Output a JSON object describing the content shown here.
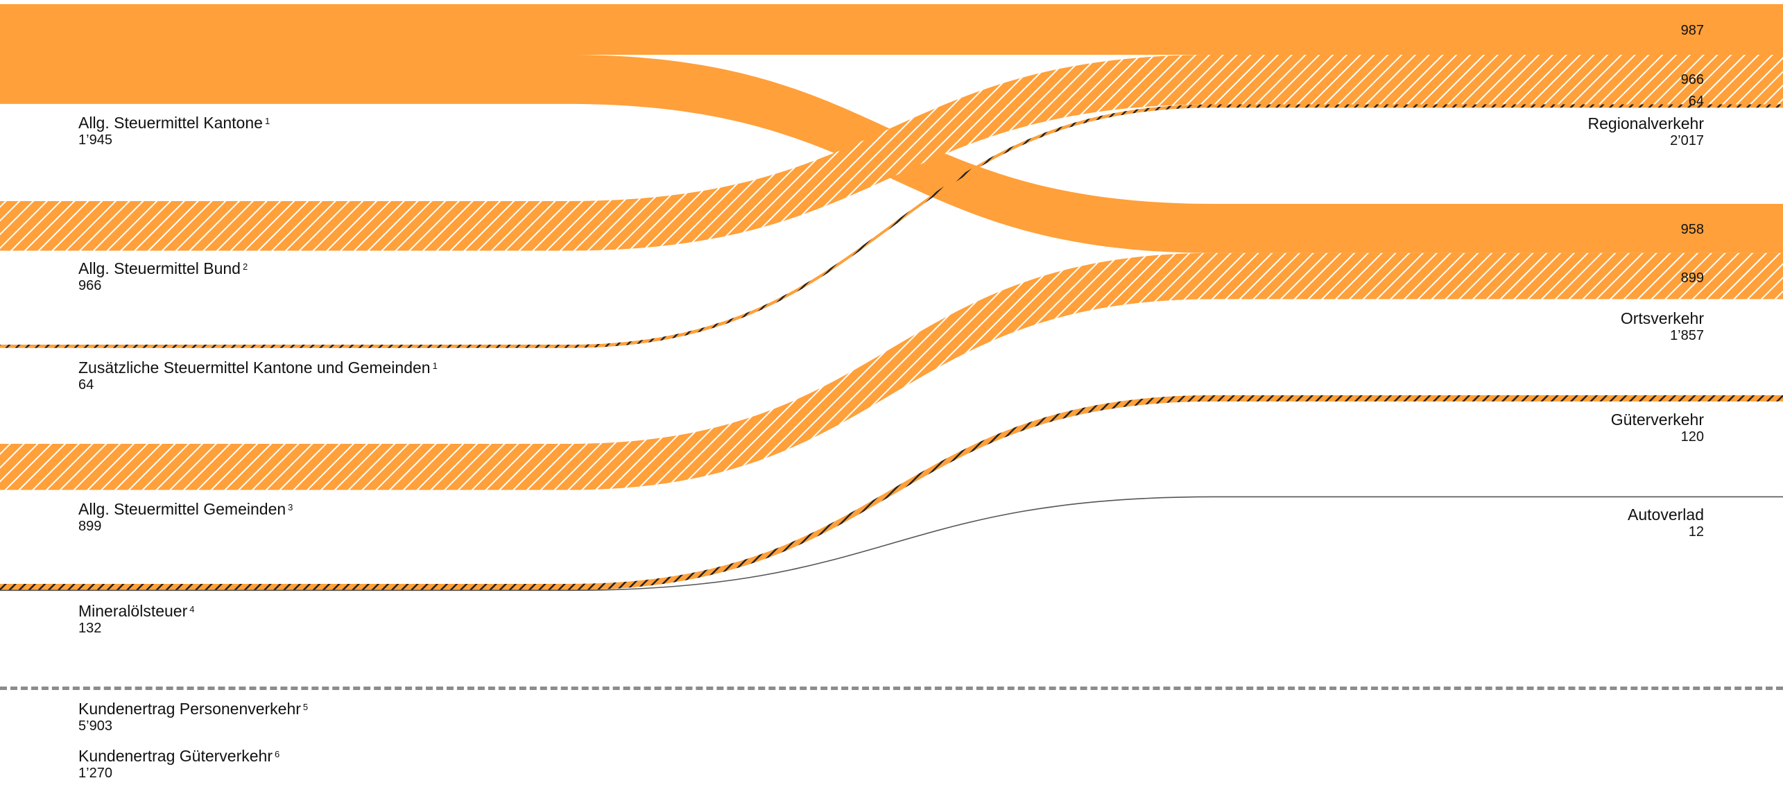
{
  "chart_data": {
    "type": "sankey",
    "colors": {
      "orange": "#ffa03a",
      "dark": "#222222",
      "line": "#555555"
    },
    "sources": [
      {
        "id": "kantone",
        "label": "Allg. Steuermittel Kantone",
        "note": "1",
        "value": 1945,
        "value_label": "1’945"
      },
      {
        "id": "bund",
        "label": "Allg. Steuermittel Bund",
        "note": "2",
        "value": 966,
        "value_label": "966"
      },
      {
        "id": "zusatz",
        "label": "Zusätzliche Steuermittel Kantone und Gemeinden",
        "note": "1",
        "value": 64,
        "value_label": "64"
      },
      {
        "id": "gemeinden",
        "label": "Allg. Steuermittel Gemeinden",
        "note": "3",
        "value": 899,
        "value_label": "899"
      },
      {
        "id": "mineraloel",
        "label": "Mineralölsteuer",
        "note": "4",
        "value": 132,
        "value_label": "132"
      }
    ],
    "targets": [
      {
        "id": "regional",
        "label": "Regionalverkehr",
        "value": 2017,
        "value_label": "2’017"
      },
      {
        "id": "orts",
        "label": "Ortsverkehr",
        "value": 1857,
        "value_label": "1’857"
      },
      {
        "id": "gueter",
        "label": "Güterverkehr",
        "value": 120,
        "value_label": "120"
      },
      {
        "id": "autoverlad",
        "label": "Autoverlad",
        "value": 12,
        "value_label": "12"
      }
    ],
    "flows": [
      {
        "source": "kantone",
        "target": "regional",
        "value": 987,
        "value_label": "987",
        "pattern": "solid"
      },
      {
        "source": "kantone",
        "target": "orts",
        "value": 958,
        "value_label": "958",
        "pattern": "solid"
      },
      {
        "source": "bund",
        "target": "regional",
        "value": 966,
        "value_label": "966",
        "pattern": "hatched"
      },
      {
        "source": "zusatz",
        "target": "regional",
        "value": 64,
        "value_label": "64",
        "pattern": "dark-hatched"
      },
      {
        "source": "gemeinden",
        "target": "orts",
        "value": 899,
        "value_label": "899",
        "pattern": "hatched"
      },
      {
        "source": "mineraloel",
        "target": "gueter",
        "value": 120,
        "value_label": "",
        "pattern": "dark-hatched"
      },
      {
        "source": "mineraloel",
        "target": "autoverlad",
        "value": 12,
        "value_label": "",
        "pattern": "line"
      }
    ],
    "footer_items": [
      {
        "label": "Kundenertrag Personenverkehr",
        "note": "5",
        "value": 5903,
        "value_label": "5’903"
      },
      {
        "label": "Kundenertrag Güterverkehr",
        "note": "6",
        "value": 1270,
        "value_label": "1’270"
      }
    ]
  }
}
